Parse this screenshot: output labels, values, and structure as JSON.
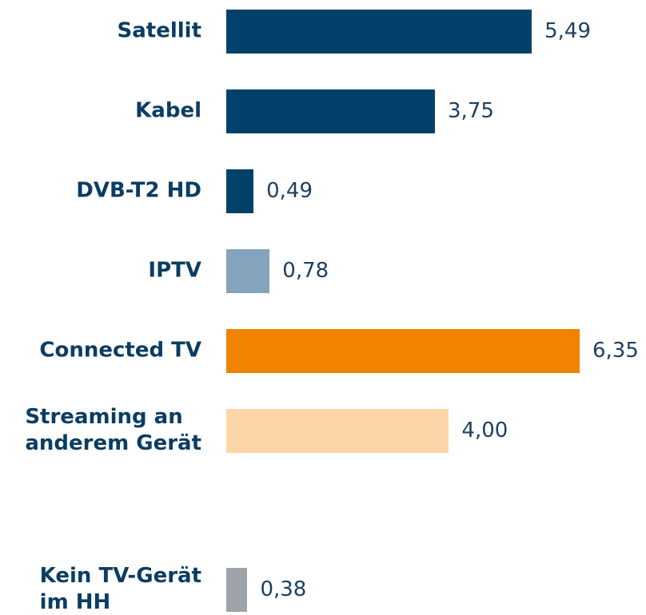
{
  "chart_data": {
    "type": "barh",
    "categories": [
      "Satellit",
      "Kabel",
      "DVB-T2 HD",
      "IPTV",
      "Connected TV",
      "Streaming an\nanderem Gerät",
      "Kein TV-Gerät\nim HH"
    ],
    "values": [
      5.49,
      3.75,
      0.49,
      0.78,
      6.35,
      4.0,
      0.38
    ],
    "value_labels": [
      "5,49",
      "3,75",
      "0,49",
      "0,78",
      "6,35",
      "4,00",
      "0,38"
    ],
    "colors": [
      "#02426a",
      "#02426a",
      "#02426a",
      "#84a3bd",
      "#f08300",
      "#fdd5a8",
      "#9ea3a9"
    ]
  }
}
